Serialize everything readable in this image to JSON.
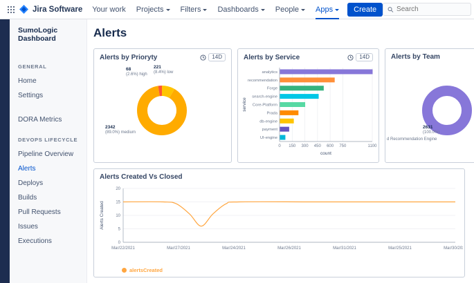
{
  "topnav": {
    "app_name": "Jira Software",
    "items": [
      {
        "label": "Your work",
        "caret": false,
        "active": false
      },
      {
        "label": "Projects",
        "caret": true,
        "active": false
      },
      {
        "label": "Filters",
        "caret": true,
        "active": false
      },
      {
        "label": "Dashboards",
        "caret": true,
        "active": false
      },
      {
        "label": "People",
        "caret": true,
        "active": false
      },
      {
        "label": "Apps",
        "caret": true,
        "active": true
      }
    ],
    "create_label": "Create",
    "search_placeholder": "Search"
  },
  "sidebar": {
    "title": "SumoLogic Dashboard",
    "sections": [
      {
        "heading": "GENERAL",
        "items": [
          {
            "label": "Home"
          },
          {
            "label": "Settings"
          }
        ]
      },
      {
        "heading": "",
        "items": [
          {
            "label": "DORA Metrics"
          }
        ]
      },
      {
        "heading": "DEVOPS LIFECYCLE",
        "items": [
          {
            "label": "Pipeline Overview"
          },
          {
            "label": "Alerts",
            "active": true
          },
          {
            "label": "Deploys"
          },
          {
            "label": "Builds"
          },
          {
            "label": "Pull Requests"
          },
          {
            "label": "Issues"
          },
          {
            "label": "Executions"
          }
        ]
      }
    ]
  },
  "main": {
    "page_title": "Alerts",
    "range_badge": "14D"
  },
  "colors": {
    "brand_blue": "#0052CC",
    "medium_orange": "#FFAB00",
    "team_purple": "#8777D9",
    "line_orange": "#FFA640"
  },
  "chart_data": [
    {
      "id": "priority_donut",
      "type": "pie",
      "donut": true,
      "title": "Alerts by Prioryty",
      "slices": [
        {
          "label": "low",
          "value": 221,
          "pct": "8.4%",
          "caption": "(8.4%) low",
          "color": "#FFC400"
        },
        {
          "label": "medium",
          "value": 2342,
          "pct": "89.0%",
          "caption": "(89.0%) medium",
          "color": "#FFAB00"
        },
        {
          "label": "high",
          "value": 68,
          "pct": "2.6%",
          "caption": "(2.6%) high",
          "color": "#FF5630"
        }
      ]
    },
    {
      "id": "service_bars",
      "type": "bar",
      "orientation": "horizontal",
      "title": "Alerts by Service",
      "categories": [
        "analytics",
        "recommendation",
        "Forge",
        "search-engine",
        "Core-Platform",
        "Prada",
        "db-engine",
        "payment",
        "UI-engine"
      ],
      "values": [
        1100,
        650,
        520,
        460,
        300,
        220,
        165,
        110,
        65
      ],
      "colors": [
        "#8777D9",
        "#FF8F39",
        "#36B37E",
        "#00C7E6",
        "#57D9A3",
        "#FF8B00",
        "#FFC400",
        "#6554C0",
        "#00B8D9"
      ],
      "xlabel": "count",
      "ylabel": "service",
      "xticks": [
        0,
        150,
        300,
        450,
        600,
        750,
        1100
      ],
      "xlim": [
        0,
        1100
      ],
      "grid": true
    },
    {
      "id": "team_donut",
      "type": "pie",
      "donut": true,
      "title": "Alerts by Team",
      "slices": [
        {
          "label": "d Recommendation Engine",
          "value": 2631,
          "pct": "100.0%",
          "caption": "(100.0%)",
          "color": "#8777D9"
        }
      ]
    },
    {
      "id": "created_line",
      "type": "line",
      "title": "Alerts Created Vs Closed",
      "ylabel": "Alerts Created",
      "ylim": [
        0,
        20
      ],
      "yticks": [
        0,
        5,
        10,
        15,
        20
      ],
      "xticklabels": [
        "Mar/22/2021",
        "Mar/27/2021",
        "Mar/24/2021",
        "Mar/26/2021",
        "Mar/31/2021",
        "Mar/25/2021",
        "Mar/30/2021"
      ],
      "grid": true,
      "legend_position": "bottom-left",
      "series": [
        {
          "name": "alertsCreated",
          "color": "#FFA640",
          "points": [
            [
              0,
              15
            ],
            [
              0.12,
              15
            ],
            [
              0.16,
              14.3
            ],
            [
              0.2,
              10.5
            ],
            [
              0.235,
              6
            ],
            [
              0.27,
              10.5
            ],
            [
              0.31,
              14.3
            ],
            [
              0.35,
              15
            ],
            [
              0.6,
              15
            ],
            [
              1,
              15
            ]
          ]
        }
      ]
    }
  ]
}
